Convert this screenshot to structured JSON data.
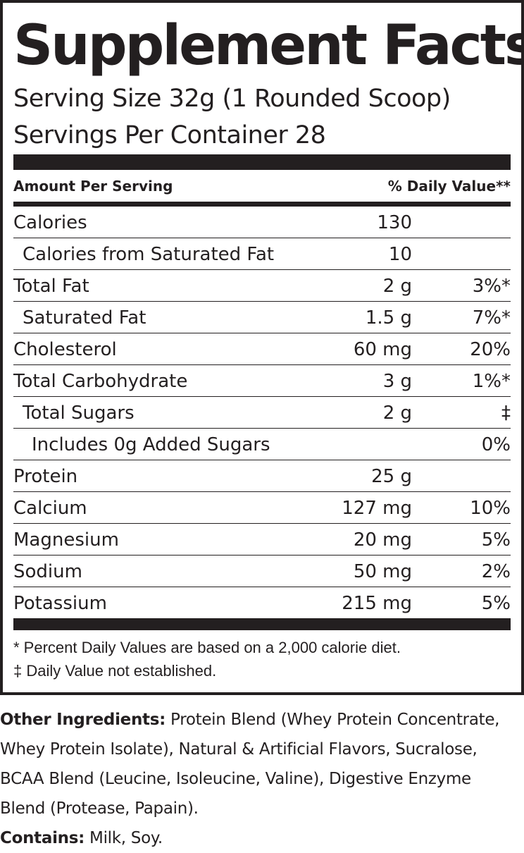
{
  "title": "Supplement Facts",
  "serving_size": "Serving Size 32g (1 Rounded Scoop)",
  "servings_per_container": "Servings Per Container  28",
  "header": {
    "left": "Amount Per Serving",
    "right": "% Daily Value**"
  },
  "rows": [
    {
      "name": "Calories",
      "amount": "130",
      "dv": ""
    },
    {
      "name": "Calories from Saturated Fat",
      "amount": "10",
      "dv": ""
    },
    {
      "name": "Total Fat",
      "amount": "2 g",
      "dv": "3%*"
    },
    {
      "name": "Saturated Fat",
      "amount": "1.5 g",
      "dv": "7%*"
    },
    {
      "name": "Cholesterol",
      "amount": "60 mg",
      "dv": "20%"
    },
    {
      "name": "Total Carbohydrate",
      "amount": "3 g",
      "dv": "1%*"
    },
    {
      "name": "Total Sugars",
      "amount": "2 g",
      "dv": "‡"
    },
    {
      "name": "Includes 0g Added Sugars",
      "amount": "",
      "dv": "0%"
    },
    {
      "name": "Protein",
      "amount": "25 g",
      "dv": ""
    },
    {
      "name": "Calcium",
      "amount": "127 mg",
      "dv": "10%"
    },
    {
      "name": "Magnesium",
      "amount": "20 mg",
      "dv": "5%"
    },
    {
      "name": "Sodium",
      "amount": "50 mg",
      "dv": "2%"
    },
    {
      "name": "Potassium",
      "amount": "215 mg",
      "dv": "5%"
    }
  ],
  "footnotes": [
    "* Percent Daily Values are based on a 2,000 calorie diet.",
    "‡ Daily Value not established."
  ],
  "other_ingredients": {
    "label": "Other Ingredients:",
    "lines": [
      " Protein Blend (Whey Protein Concentrate,",
      "Whey Protein Isolate), Natural & Artificial Flavors, Sucralose,",
      "BCAA Blend (Leucine, Isoleucine, Valine), Digestive Enzyme",
      "Blend (Protease, Papain)."
    ]
  },
  "contains": {
    "label": "Contains:",
    "text": " Milk, Soy."
  }
}
